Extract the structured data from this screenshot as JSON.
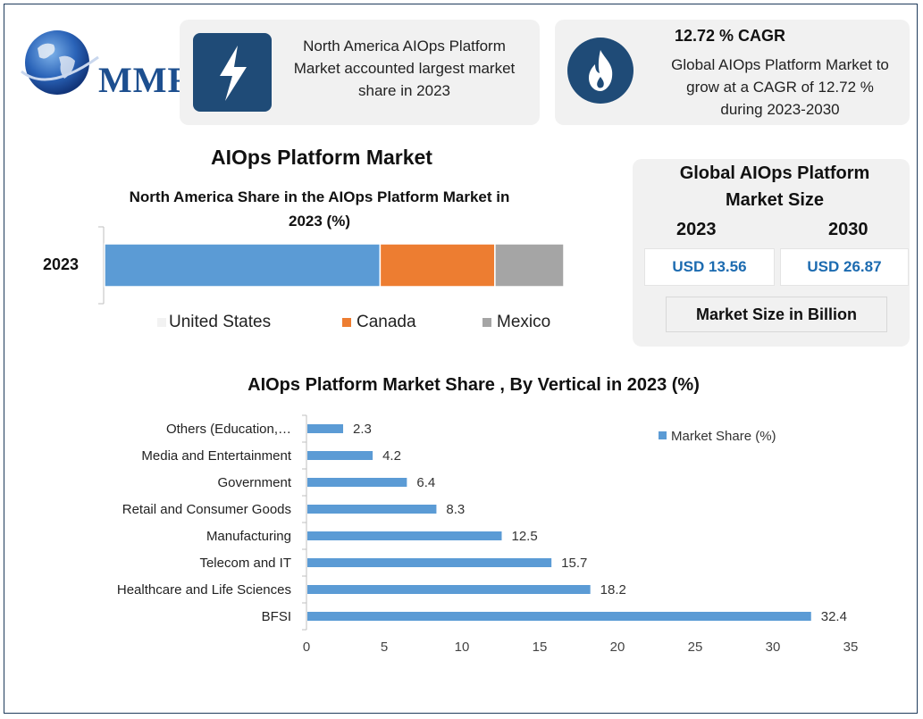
{
  "logo": {
    "text": "MMR"
  },
  "info_cards": [
    {
      "icon": "lightning-icon",
      "text_lines": [
        "North America AIOps Platform",
        "Market accounted largest market",
        "share in 2023"
      ]
    },
    {
      "icon": "flame-icon",
      "title": "12.72 % CAGR",
      "text_lines": [
        "Global AIOps Platform Market to",
        "grow at a CAGR of 12.72 %",
        "during 2023-2030"
      ]
    }
  ],
  "main_title": "AIOps Platform Market",
  "market_size": {
    "title_lines": [
      "Global AIOps Platform",
      "Market Size"
    ],
    "years": [
      "2023",
      "2030"
    ],
    "values": [
      "USD 13.56",
      "USD 26.87"
    ],
    "unit_label": "Market Size in Billion"
  },
  "colors": {
    "blue": "#5b9bd5",
    "orange": "#ed7d31",
    "gray": "#a5a5a5",
    "navy": "#1f4b77"
  },
  "chart_data": [
    {
      "type": "bar",
      "orientation": "horizontal-stacked",
      "title": "North America Share in the AIOps Platform Market in 2023 (%)",
      "title_lines": [
        "North America Share in the AIOps Platform Market in",
        "2023 (%)"
      ],
      "categories": [
        "2023"
      ],
      "series": [
        {
          "name": "United States",
          "values": [
            60
          ],
          "color": "#5b9bd5"
        },
        {
          "name": "Canada",
          "values": [
            25
          ],
          "color": "#ed7d31"
        },
        {
          "name": "Mexico",
          "values": [
            15
          ],
          "color": "#a5a5a5"
        }
      ],
      "xlim": [
        0,
        100
      ],
      "legend": "bottom",
      "grid": false
    },
    {
      "type": "bar",
      "orientation": "horizontal",
      "title": "AIOps Platform Market Share , By Vertical in 2023 (%)",
      "categories": [
        "Others (Education,…",
        "Media and Entertainment",
        "Government",
        "Retail and Consumer Goods",
        "Manufacturing",
        "Telecom and IT",
        "Healthcare and Life Sciences",
        "BFSI"
      ],
      "series": [
        {
          "name": "Market Share (%)",
          "values": [
            2.3,
            4.2,
            6.4,
            8.3,
            12.5,
            15.7,
            18.2,
            32.4
          ],
          "color": "#5b9bd5"
        }
      ],
      "value_labels": [
        "2.3",
        "4.2",
        "6.4",
        "8.3",
        "12.5",
        "15.7",
        "18.2",
        "32.4"
      ],
      "x_ticks": [
        0,
        5,
        10,
        15,
        20,
        25,
        30,
        35
      ],
      "x_tick_labels": [
        "0",
        "5",
        "10",
        "15",
        "20",
        "25",
        "30",
        "35"
      ],
      "xlim": [
        0,
        35
      ],
      "legend": "top-right",
      "grid": false
    }
  ]
}
